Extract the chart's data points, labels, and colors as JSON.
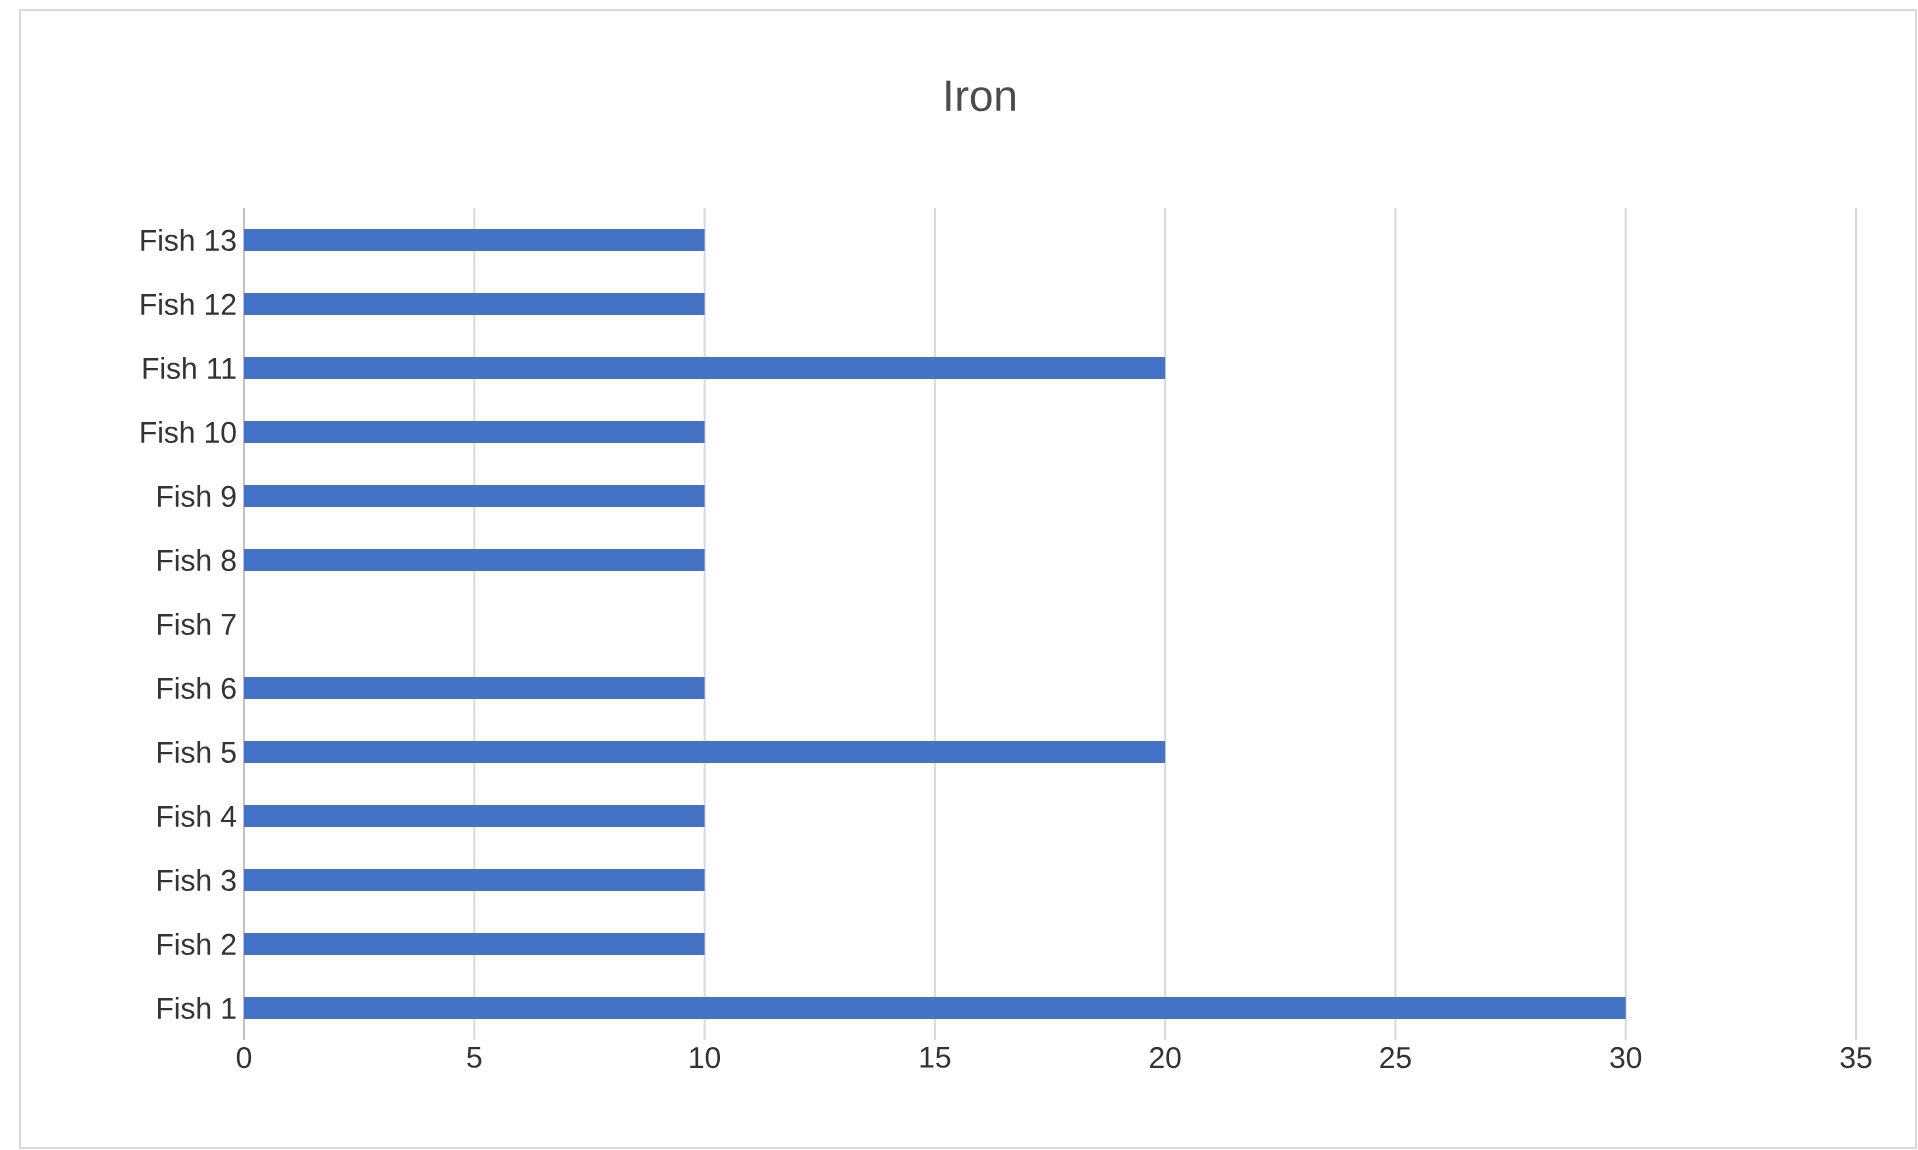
{
  "chart_data": {
    "type": "bar",
    "orientation": "horizontal",
    "title": "Iron",
    "categories": [
      "Fish 13",
      "Fish 12",
      "Fish 11",
      "Fish 10",
      "Fish 9",
      "Fish 8",
      "Fish 7",
      "Fish 6",
      "Fish 5",
      "Fish 4",
      "Fish 3",
      "Fish 2",
      "Fish 1"
    ],
    "values": [
      10,
      10,
      20,
      10,
      10,
      10,
      null,
      10,
      20,
      10,
      10,
      10,
      30
    ],
    "color": "#4472c4",
    "xlim": [
      0,
      35
    ],
    "xticks": [
      0,
      5,
      10,
      15,
      20,
      25,
      30,
      35
    ],
    "grid": "x"
  }
}
